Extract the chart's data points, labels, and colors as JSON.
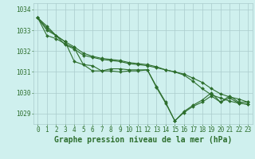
{
  "background_color": "#cff0ee",
  "grid_color": "#aacccc",
  "line_color": "#2d6e2d",
  "xlabel": "Graphe pression niveau de la mer (hPa)",
  "xlabel_fontsize": 7,
  "ylabel_ticks": [
    1029,
    1030,
    1031,
    1032,
    1033,
    1034
  ],
  "xlim": [
    -0.5,
    23.5
  ],
  "ylim": [
    1028.5,
    1034.3
  ],
  "series": [
    {
      "x": [
        0,
        1,
        2,
        3,
        4,
        5,
        6,
        7,
        8,
        9,
        10,
        11,
        12,
        13,
        14,
        15,
        16,
        17,
        18,
        19,
        20,
        21,
        22,
        23
      ],
      "y": [
        1033.6,
        1033.2,
        1032.75,
        1032.45,
        1031.5,
        1031.35,
        1031.05,
        1031.05,
        1031.15,
        1031.15,
        1031.1,
        1031.1,
        1031.1,
        1030.3,
        1029.55,
        1028.65,
        1029.1,
        1029.4,
        1029.65,
        1030.0,
        1029.55,
        1029.85,
        1029.55,
        1029.55
      ]
    },
    {
      "x": [
        0,
        1,
        2,
        3,
        4,
        5,
        6,
        7,
        8,
        9,
        10,
        11,
        12,
        13,
        14,
        15,
        16,
        17,
        18,
        19,
        20,
        21,
        22,
        23
      ],
      "y": [
        1033.6,
        1033.0,
        1032.75,
        1032.3,
        1032.1,
        1031.8,
        1031.7,
        1031.6,
        1031.55,
        1031.5,
        1031.4,
        1031.35,
        1031.3,
        1031.2,
        1031.1,
        1031.0,
        1030.9,
        1030.7,
        1030.5,
        1030.2,
        1029.95,
        1029.8,
        1029.7,
        1029.55
      ]
    },
    {
      "x": [
        0,
        1,
        2,
        3,
        4,
        5,
        6,
        7,
        8,
        9,
        10,
        11,
        12,
        13,
        14,
        15,
        16,
        17,
        18,
        19,
        20,
        21,
        22,
        23
      ],
      "y": [
        1033.6,
        1033.1,
        1032.75,
        1032.45,
        1032.2,
        1031.9,
        1031.75,
        1031.65,
        1031.6,
        1031.55,
        1031.45,
        1031.4,
        1031.35,
        1031.25,
        1031.1,
        1031.0,
        1030.85,
        1030.55,
        1030.2,
        1029.9,
        1029.75,
        1029.6,
        1029.5,
        1029.45
      ]
    },
    {
      "x": [
        0,
        1,
        2,
        3,
        4,
        5,
        6,
        7,
        8,
        9,
        10,
        11,
        12,
        13,
        14,
        15,
        16,
        17,
        18,
        19,
        20,
        21,
        22,
        23
      ],
      "y": [
        1033.6,
        1032.75,
        1032.6,
        1032.35,
        1032.15,
        1031.35,
        1031.3,
        1031.05,
        1031.05,
        1031.0,
        1031.05,
        1031.05,
        1031.1,
        1030.25,
        1029.5,
        1028.65,
        1029.05,
        1029.35,
        1029.55,
        1029.85,
        1029.55,
        1029.75,
        1029.5,
        1029.45
      ]
    }
  ],
  "xtick_labels": [
    "0",
    "1",
    "2",
    "3",
    "4",
    "5",
    "6",
    "7",
    "8",
    "9",
    "10",
    "11",
    "12",
    "13",
    "14",
    "15",
    "16",
    "17",
    "18",
    "19",
    "20",
    "21",
    "22",
    "23"
  ],
  "tick_fontsize": 5.5,
  "marker": "D",
  "marker_size": 2.0,
  "linewidth": 0.8
}
